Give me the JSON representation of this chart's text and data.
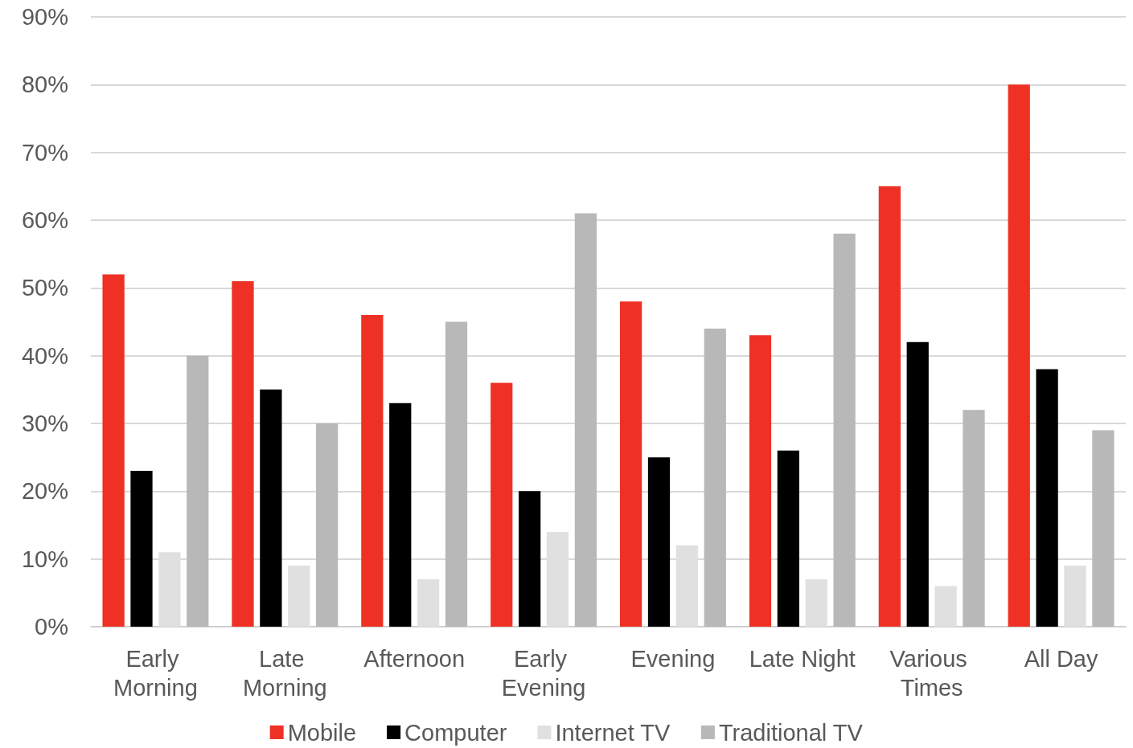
{
  "chart_data": {
    "type": "bar",
    "categories": [
      "Early Morning",
      "Late Morning",
      "Afternoon",
      "Early Evening",
      "Evening",
      "Late Night",
      "Various Times",
      "All Day"
    ],
    "series": [
      {
        "name": "Mobile",
        "color": "#ee3124",
        "values": [
          52,
          51,
          46,
          36,
          48,
          43,
          65,
          80
        ]
      },
      {
        "name": "Computer",
        "color": "#000000",
        "values": [
          23,
          35,
          33,
          20,
          25,
          26,
          42,
          38
        ]
      },
      {
        "name": "Internet TV",
        "color": "#e0e0e0",
        "values": [
          11,
          9,
          7,
          14,
          12,
          7,
          6,
          9
        ]
      },
      {
        "name": "Traditional TV",
        "color": "#b8b8b8",
        "values": [
          40,
          30,
          45,
          61,
          44,
          58,
          32,
          29
        ]
      }
    ],
    "ylim": [
      0,
      90
    ],
    "yticks": [
      {
        "value": 0,
        "label": "0%"
      },
      {
        "value": 10,
        "label": "10%"
      },
      {
        "value": 20,
        "label": "20%"
      },
      {
        "value": 30,
        "label": "30%"
      },
      {
        "value": 40,
        "label": "40%"
      },
      {
        "value": 50,
        "label": "50%"
      },
      {
        "value": 60,
        "label": "60%"
      },
      {
        "value": 70,
        "label": "70%"
      },
      {
        "value": 80,
        "label": "80%"
      },
      {
        "value": 90,
        "label": "90%"
      }
    ],
    "grid": "y",
    "legend": "bottom"
  }
}
